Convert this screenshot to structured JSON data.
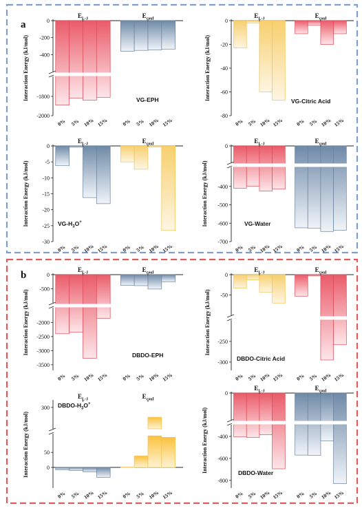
{
  "figure": {
    "sections": [
      {
        "label": "a",
        "frame_color": "#7f9fc6"
      },
      {
        "label": "b",
        "frame_color": "#dd5b5b"
      }
    ],
    "colors": {
      "red_top": "#ea5b69",
      "red_bottom": "#fde6e9",
      "blue_top": "#6f8aa7",
      "blue_bottom": "#f0f4f9",
      "yellow_top": "#f7d78a",
      "yellow_bottom": "#fef4de",
      "yellow_fill_top": "#fde7a3",
      "yellow_fill_bottom": "#fbc23f"
    }
  },
  "chart_data": [
    {
      "type": "bar",
      "title": "VG-EPH",
      "ylabel": "Interaction Energy (kJ/mol)",
      "groups": [
        "E_L-J",
        "E_coul"
      ],
      "group_labels": [
        {
          "main": "E",
          "sub": "L-J"
        },
        {
          "main": "E",
          "sub": "coul"
        }
      ],
      "categories": [
        "0%",
        "5%",
        "10%",
        "15%"
      ],
      "series": [
        {
          "name": "E_L-J",
          "color": "red",
          "values": [
            -1890,
            -1820,
            -1840,
            -1810
          ]
        },
        {
          "name": "E_coul",
          "color": "blue",
          "values": [
            -360,
            -350,
            -345,
            -335
          ]
        }
      ],
      "ylim": [
        -2000,
        0
      ],
      "axis_break": [
        -600,
        -1600
      ],
      "yticks": [
        "0",
        "-200",
        "-400",
        "-1800",
        "-2000"
      ]
    },
    {
      "type": "bar",
      "title": "VG-Citric Acid",
      "ylabel": "Interaction Energy (kJ/mol)",
      "groups": [
        "E_L-J",
        "E_coul"
      ],
      "group_labels": [
        {
          "main": "E",
          "sub": "L-J"
        },
        {
          "main": "E",
          "sub": "coul"
        }
      ],
      "categories": [
        "0%",
        "5%",
        "10%",
        "15%"
      ],
      "series": [
        {
          "name": "E_L-J",
          "color": "yellow",
          "values": [
            -23,
            -2,
            -60,
            -67
          ]
        },
        {
          "name": "E_coul",
          "color": "red",
          "values": [
            -11,
            -4,
            -20,
            -11
          ]
        }
      ],
      "ylim": [
        -80,
        0
      ],
      "yticks": [
        "0",
        "-20",
        "-40",
        "-60",
        "-80"
      ]
    },
    {
      "type": "bar",
      "title": "VG-H3O+",
      "title_parts": {
        "a": "VG-H",
        "b": "3",
        "c": "O",
        "d": "+"
      },
      "ylabel": "Interaction Energy (kJ/mol)",
      "groups": [
        "E_L-J",
        "E_coul"
      ],
      "group_labels": [
        {
          "main": "E",
          "sub": "L-J"
        },
        {
          "main": "E",
          "sub": "coul"
        }
      ],
      "categories": [
        "0%",
        "5%",
        "10%",
        "15%"
      ],
      "series": [
        {
          "name": "E_L-J",
          "color": "blue",
          "values": [
            -6.2,
            -0.4,
            -16.2,
            -18.1
          ]
        },
        {
          "name": "E_coul",
          "color": "yellow",
          "values": [
            -5.0,
            -7.3,
            -0.3,
            -26.5
          ]
        }
      ],
      "ylim": [
        -30,
        0
      ],
      "yticks": [
        "0",
        "-5",
        "-10",
        "-15",
        "-20",
        "-25",
        "-30"
      ]
    },
    {
      "type": "bar",
      "title": "VG-Water",
      "ylabel": "Interaction Energy (kJ/mol)",
      "groups": [
        "E_L-J",
        "E_coul"
      ],
      "group_labels": [
        {
          "main": "E",
          "sub": "L-J"
        },
        {
          "main": "E",
          "sub": "coul"
        }
      ],
      "categories": [
        "0%",
        "5%",
        "10%",
        "15%"
      ],
      "series": [
        {
          "name": "E_L-J",
          "color": "red",
          "values": [
            -410,
            -400,
            -425,
            -415
          ]
        },
        {
          "name": "E_coul",
          "color": "blue",
          "values": [
            -625,
            -628,
            -645,
            -638
          ]
        }
      ],
      "ylim": [
        -700,
        0
      ],
      "axis_break": [
        -100,
        -300
      ],
      "yticks": [
        "0",
        "-400",
        "-500",
        "-600",
        "-700"
      ]
    },
    {
      "type": "bar",
      "title": "DBDO-EPH",
      "ylabel": "Interaction Energy (kJ/mol)",
      "groups": [
        "E_L-J",
        "E_coul"
      ],
      "group_labels": [
        {
          "main": "E",
          "sub": "L-J"
        },
        {
          "main": "E",
          "sub": "coul"
        }
      ],
      "categories": [
        "0%",
        "5%",
        "10%",
        "15%"
      ],
      "series": [
        {
          "name": "E_L-J",
          "color": "red",
          "values": [
            -2400,
            -2350,
            -3270,
            -1850
          ]
        },
        {
          "name": "E_coul",
          "color": "blue",
          "values": [
            -380,
            -390,
            -510,
            -250
          ]
        }
      ],
      "ylim": [
        -3700,
        0
      ],
      "axis_break": [
        -1000,
        -1500
      ],
      "yticks": [
        "0",
        "-500",
        "-2000",
        "-2500",
        "-3000",
        "-3500"
      ]
    },
    {
      "type": "bar",
      "title": "DBDO-Citric Acid",
      "ylabel": "Interaction Energy (kJ/mol)",
      "groups": [
        "E_L-J",
        "E_coul"
      ],
      "group_labels": [
        {
          "main": "E",
          "sub": "L-J"
        },
        {
          "main": "E",
          "sub": "coul"
        }
      ],
      "categories": [
        "0%",
        "5%",
        "10%",
        "15%"
      ],
      "series": [
        {
          "name": "E_L-J",
          "color": "yellow",
          "values": [
            -33,
            -13,
            -43,
            -70
          ]
        },
        {
          "name": "E_coul",
          "color": "red",
          "values": [
            -53,
            -3,
            -295,
            -258
          ]
        }
      ],
      "ylim": [
        -320,
        0
      ],
      "axis_break": [
        -100,
        -200
      ],
      "yticks": [
        "0",
        "-50",
        "-250",
        "-300"
      ]
    },
    {
      "type": "bar",
      "title": "DBDO-H3O+",
      "title_parts": {
        "a": "DBDO-H",
        "b": "3",
        "c": "O",
        "d": "+"
      },
      "ylabel": "Interaction Energy (kJ/mol)",
      "groups": [
        "E_L-J",
        "E_coul"
      ],
      "group_labels": [
        {
          "main": "E",
          "sub": "L-J"
        },
        {
          "main": "E",
          "sub": "coul"
        }
      ],
      "categories": [
        "0%",
        "5%",
        "10%",
        "15%"
      ],
      "series": [
        {
          "name": "E_L-J",
          "color": "blue",
          "values": [
            -8,
            -10,
            -15,
            -33
          ]
        },
        {
          "name": "E_coul",
          "color": "yellow",
          "values": [
            1,
            38,
            105,
            100
          ]
        }
      ],
      "extra_series": [
        {
          "name": "E_coul (upper)",
          "values": [
            null,
            null,
            268,
            null
          ]
        }
      ],
      "ylim": [
        -50,
        320
      ],
      "axis_break": [
        110,
        230
      ],
      "yticks": [
        "0",
        "50",
        "300"
      ]
    },
    {
      "type": "bar",
      "title": "DBDO-Water",
      "ylabel": "Interaction Energy (kJ/mol)",
      "groups": [
        "E_L-J",
        "E_coul"
      ],
      "group_labels": [
        {
          "main": "E",
          "sub": "L-J"
        },
        {
          "main": "E",
          "sub": "coul"
        }
      ],
      "categories": [
        "0%",
        "5%",
        "10%",
        "15%"
      ],
      "series": [
        {
          "name": "E_L-J",
          "color": "red",
          "values": [
            -405,
            -410,
            -385,
            -695
          ]
        },
        {
          "name": "E_coul",
          "color": "blue",
          "values": [
            -570,
            -572,
            -440,
            -830
          ]
        }
      ],
      "ylim": [
        -870,
        0
      ],
      "axis_break": [
        -100,
        -300
      ],
      "yticks": [
        "0",
        "-400",
        "-600",
        "-800"
      ]
    }
  ]
}
